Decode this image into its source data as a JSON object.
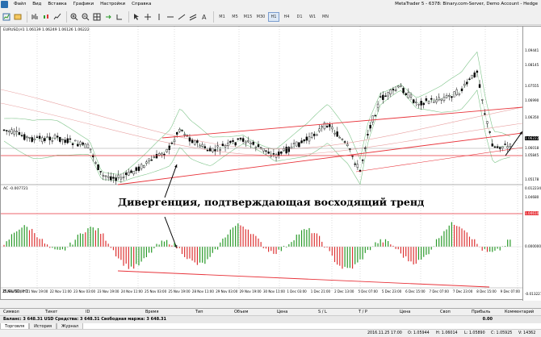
{
  "window": {
    "title": "MetaTrader 5 - 6378: Binary.com-Server, Demo Account - Hedge"
  },
  "menu": [
    "Файл",
    "Вид",
    "Вставка",
    "Графики",
    "Настройки",
    "Справка"
  ],
  "timeframes": [
    "M1",
    "M5",
    "M15",
    "M30",
    "H1",
    "H4",
    "D1",
    "W1",
    "MN"
  ],
  "active_timeframe": "H1",
  "chart": {
    "symbol_info": "EURUSD,H1  1.06139 1.06249 1.06126 1.06222",
    "indicator_label": "AC -0.007721",
    "annotation": "Дивергенция, подтверждающая восходящий тренд",
    "price_labels": [
      "1.09441",
      "1.08145",
      "1.07555",
      "1.06990",
      "1.06350",
      "1.06222",
      "1.06018",
      "1.05845",
      "1.05178",
      "1.04680",
      "1.04610"
    ],
    "indicator_labels": [
      "0.012234",
      "0.000000",
      "-0.013227"
    ],
    "time_labels": [
      "21 Nov 03:00",
      "21 Nov 19:00",
      "22 Nov 11:00",
      "23 Nov 03:00",
      "23 Nov 19:00",
      "24 Nov 11:00",
      "25 Nov 03:00",
      "25 Nov 19:00",
      "28 Nov 11:00",
      "29 Nov 03:00",
      "29 Nov 19:00",
      "30 Nov 11:00",
      "1 Dec 03:00",
      "1 Dec 21:00",
      "2 Dec 13:00",
      "5 Dec 07:00",
      "5 Dec 23:00",
      "6 Dec 15:00",
      "7 Dec 07:00",
      "7 Dec 23:00",
      "8 Dec 15:00",
      "9 Dec 07:00"
    ],
    "chart_tab": "EURUSD, H1",
    "colors": {
      "bull": "#000000",
      "bear": "#000000",
      "trend": "#e8333a",
      "bands": "#7fc48a",
      "ma": "#e8333a"
    }
  },
  "terminal": {
    "columns": [
      "Символ",
      "Тикет",
      "ID",
      "Время",
      "Тип",
      "Объем",
      "Цена",
      "S / L",
      "T / P",
      "Цена",
      "Своп",
      "Прибыль",
      "Комментарий"
    ],
    "balance_line": "Баланс: 3 648.31 USD  Средства: 3 648.31  Свободная маржа: 3 648.31",
    "balance_value": "0.00",
    "tabs": [
      "Торговля",
      "История",
      "Журнал"
    ]
  },
  "status": {
    "datetime": "2016.11.25 17:00",
    "open": "O: 1.05944",
    "high": "H: 1.06014",
    "low": "L: 1.05890",
    "close": "C: 1.05925",
    "volume": "V: 14362"
  }
}
